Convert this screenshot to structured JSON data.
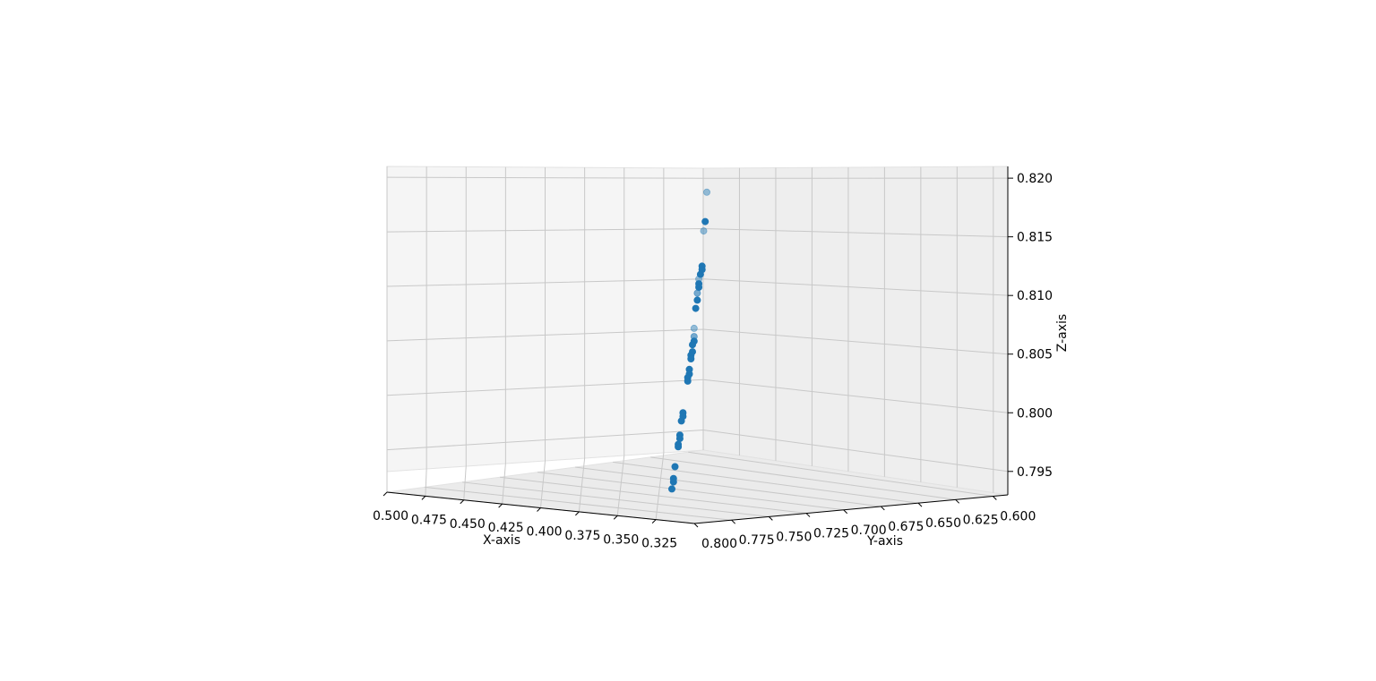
{
  "chart_data": {
    "type": "scatter3d",
    "title": "",
    "xlabel": "X-axis",
    "ylabel": "Y-axis",
    "zlabel": "Z-axis",
    "xlim": [
      0.3,
      0.5
    ],
    "ylim": [
      0.59,
      0.8
    ],
    "zlim": [
      0.793,
      0.821
    ],
    "x_ticks": [
      "0.500",
      "0.475",
      "0.450",
      "0.425",
      "0.400",
      "0.375",
      "0.350",
      "0.325"
    ],
    "y_ticks": [
      "0.800",
      "0.775",
      "0.750",
      "0.725",
      "0.700",
      "0.675",
      "0.650",
      "0.625",
      "0.600"
    ],
    "z_ticks": [
      "0.795",
      "0.800",
      "0.805",
      "0.810",
      "0.815",
      "0.820"
    ],
    "grid": true,
    "marker_color": "#1f77b4",
    "points": [
      {
        "x": 0.311,
        "y": 0.795,
        "z": 0.8188,
        "alpha": 0.45
      },
      {
        "x": 0.312,
        "y": 0.792,
        "z": 0.8163,
        "alpha": 1
      },
      {
        "x": 0.313,
        "y": 0.789,
        "z": 0.8155,
        "alpha": 0.45
      },
      {
        "x": 0.314,
        "y": 0.787,
        "z": 0.8125,
        "alpha": 1
      },
      {
        "x": 0.314,
        "y": 0.787,
        "z": 0.8122,
        "alpha": 1
      },
      {
        "x": 0.315,
        "y": 0.786,
        "z": 0.8118,
        "alpha": 1
      },
      {
        "x": 0.316,
        "y": 0.785,
        "z": 0.8114,
        "alpha": 0.45
      },
      {
        "x": 0.316,
        "y": 0.785,
        "z": 0.811,
        "alpha": 1
      },
      {
        "x": 0.316,
        "y": 0.784,
        "z": 0.8107,
        "alpha": 1
      },
      {
        "x": 0.317,
        "y": 0.784,
        "z": 0.8102,
        "alpha": 0.6
      },
      {
        "x": 0.317,
        "y": 0.783,
        "z": 0.8096,
        "alpha": 1
      },
      {
        "x": 0.318,
        "y": 0.783,
        "z": 0.8089,
        "alpha": 1
      },
      {
        "x": 0.319,
        "y": 0.781,
        "z": 0.8072,
        "alpha": 0.45
      },
      {
        "x": 0.319,
        "y": 0.781,
        "z": 0.8065,
        "alpha": 0.6
      },
      {
        "x": 0.319,
        "y": 0.78,
        "z": 0.8061,
        "alpha": 1
      },
      {
        "x": 0.32,
        "y": 0.78,
        "z": 0.8058,
        "alpha": 1
      },
      {
        "x": 0.32,
        "y": 0.779,
        "z": 0.8052,
        "alpha": 1
      },
      {
        "x": 0.321,
        "y": 0.779,
        "z": 0.8049,
        "alpha": 1
      },
      {
        "x": 0.321,
        "y": 0.778,
        "z": 0.8046,
        "alpha": 1
      },
      {
        "x": 0.322,
        "y": 0.777,
        "z": 0.8037,
        "alpha": 1
      },
      {
        "x": 0.322,
        "y": 0.777,
        "z": 0.8033,
        "alpha": 1
      },
      {
        "x": 0.323,
        "y": 0.776,
        "z": 0.803,
        "alpha": 1
      },
      {
        "x": 0.323,
        "y": 0.776,
        "z": 0.8027,
        "alpha": 1
      },
      {
        "x": 0.326,
        "y": 0.772,
        "z": 0.8,
        "alpha": 1
      },
      {
        "x": 0.326,
        "y": 0.772,
        "z": 0.7997,
        "alpha": 1
      },
      {
        "x": 0.327,
        "y": 0.771,
        "z": 0.7993,
        "alpha": 1
      },
      {
        "x": 0.328,
        "y": 0.77,
        "z": 0.7981,
        "alpha": 1
      },
      {
        "x": 0.328,
        "y": 0.77,
        "z": 0.7978,
        "alpha": 1
      },
      {
        "x": 0.329,
        "y": 0.769,
        "z": 0.7973,
        "alpha": 1
      },
      {
        "x": 0.329,
        "y": 0.769,
        "z": 0.7971,
        "alpha": 1
      },
      {
        "x": 0.331,
        "y": 0.767,
        "z": 0.7954,
        "alpha": 1
      },
      {
        "x": 0.332,
        "y": 0.766,
        "z": 0.7944,
        "alpha": 1
      },
      {
        "x": 0.332,
        "y": 0.766,
        "z": 0.7941,
        "alpha": 1
      },
      {
        "x": 0.333,
        "y": 0.765,
        "z": 0.7935,
        "alpha": 1
      }
    ]
  }
}
